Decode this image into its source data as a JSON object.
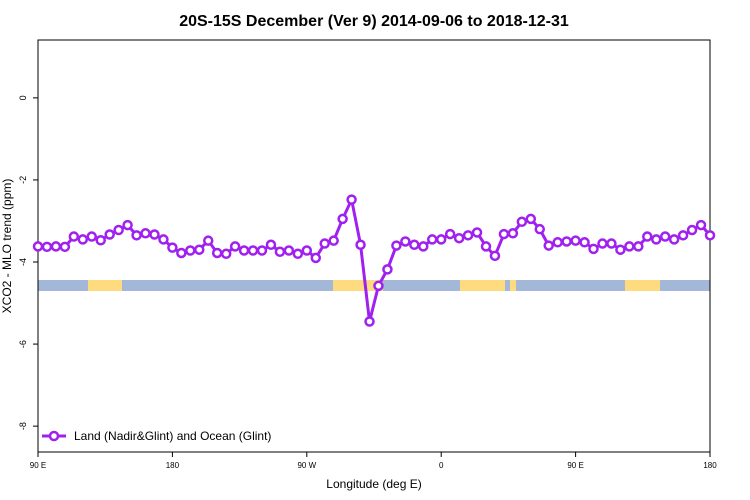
{
  "chart_data": {
    "type": "line",
    "title": "20S-15S December (Ver 9)   2014-09-06 to 2018-12-31",
    "x_label": "Longitude (deg E)",
    "y_label": "XCO2 - MLO trend (ppm)",
    "legend": "bottom-left",
    "x": [
      90,
      96,
      102,
      108,
      114,
      120,
      126,
      132,
      138,
      144,
      150,
      156,
      162,
      168,
      174,
      180,
      186,
      192,
      198,
      204,
      210,
      216,
      222,
      228,
      234,
      240,
      246,
      252,
      258,
      264,
      270,
      276,
      282,
      288,
      294,
      300,
      306,
      312,
      318,
      324,
      330,
      336,
      342,
      348,
      354,
      360,
      366,
      372,
      378,
      384,
      390,
      396,
      402,
      408,
      414,
      420,
      426,
      432,
      438,
      444,
      450,
      456,
      462,
      468,
      474,
      480,
      486,
      492,
      498,
      504,
      510,
      516,
      522,
      528,
      534,
      540
    ],
    "series": [
      {
        "name": "Land (Nadir&Glint) and Ocean (Glint)",
        "color": "#a020f0",
        "values": [
          -3.62,
          -3.63,
          -3.62,
          -3.63,
          -3.38,
          -3.45,
          -3.38,
          -3.47,
          -3.33,
          -3.22,
          -3.1,
          -3.35,
          -3.3,
          -3.33,
          -3.45,
          -3.65,
          -3.78,
          -3.72,
          -3.7,
          -3.48,
          -3.78,
          -3.8,
          -3.62,
          -3.72,
          -3.72,
          -3.72,
          -3.58,
          -3.75,
          -3.72,
          -3.8,
          -3.72,
          -3.9,
          -3.55,
          -3.48,
          -2.95,
          -2.48,
          -3.58,
          -5.45,
          -4.58,
          -4.18,
          -3.6,
          -3.5,
          -3.58,
          -3.62,
          -3.45,
          -3.45,
          -3.32,
          -3.42,
          -3.35,
          -3.28,
          -3.62,
          -3.85,
          -3.32,
          -3.3,
          -3.02,
          -2.95,
          -3.2,
          -3.6,
          -3.52,
          -3.5,
          -3.48,
          -3.52,
          -3.68,
          -3.55,
          -3.55,
          -3.7,
          -3.62,
          -3.62,
          -3.38,
          -3.45,
          -3.38,
          -3.45,
          -3.35,
          -3.22,
          -3.1,
          -3.35
        ]
      }
    ],
    "xlim": [
      90,
      540
    ],
    "xticks": [
      {
        "value": 90,
        "label": "90 E"
      },
      180,
      {
        "value": 270,
        "label": "90 W"
      },
      {
        "value": 360,
        "label": "0"
      },
      {
        "value": 450,
        "label": "90 E"
      },
      {
        "value": 540,
        "label": "180"
      }
    ],
    "ylim": [
      -8.63,
      1.41
    ],
    "yticks": [
      0,
      -2,
      -4,
      -6,
      -8
    ]
  }
}
